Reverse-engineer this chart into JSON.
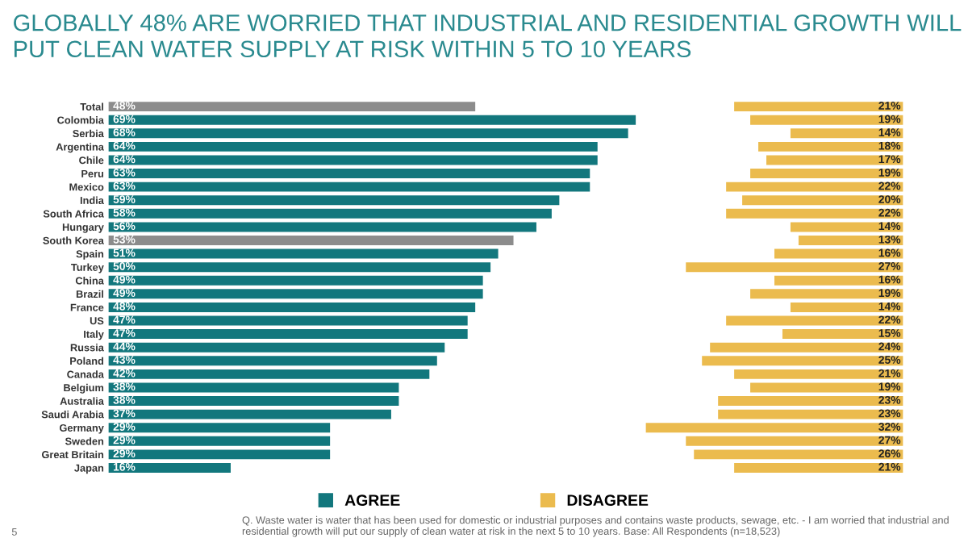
{
  "chart_data": [
    {
      "type": "bar",
      "orientation": "horizontal",
      "title": "GLOBALLY 48% ARE WORRIED THAT INDUSTRIAL AND RESIDENTIAL GROWTH WILL\nPUT CLEAN WATER SUPPLY AT RISK WITHIN 5 TO 10 YEARS",
      "categories": [
        "Total",
        "Colombia",
        "Serbia",
        "Argentina",
        "Chile",
        "Peru",
        "Mexico",
        "India",
        "South Africa",
        "Hungary",
        "South Korea",
        "Spain",
        "Turkey",
        "China",
        "Brazil",
        "France",
        "US",
        "Italy",
        "Russia",
        "Poland",
        "Canada",
        "Belgium",
        "Australia",
        "Saudi Arabia",
        "Germany",
        "Sweden",
        "Great Britain",
        "Japan"
      ],
      "series": [
        {
          "name": "AGREE",
          "color": "#12777d",
          "colors": [
            "#8c8c8c",
            "#12777d",
            "#12777d",
            "#12777d",
            "#12777d",
            "#12777d",
            "#12777d",
            "#12777d",
            "#12777d",
            "#12777d",
            "#8c8c8c",
            "#12777d",
            "#12777d",
            "#12777d",
            "#12777d",
            "#12777d",
            "#12777d",
            "#12777d",
            "#12777d",
            "#12777d",
            "#12777d",
            "#12777d",
            "#12777d",
            "#12777d",
            "#12777d",
            "#12777d",
            "#12777d",
            "#12777d"
          ],
          "values": [
            48,
            69,
            68,
            64,
            64,
            63,
            63,
            59,
            58,
            56,
            53,
            51,
            50,
            49,
            49,
            48,
            47,
            47,
            44,
            43,
            42,
            38,
            38,
            37,
            29,
            29,
            29,
            16
          ],
          "value_labels": [
            "48%",
            "69%",
            "68%",
            "64%",
            "64%",
            "63%",
            "63%",
            "59%",
            "58%",
            "56%",
            "53%",
            "51%",
            "50%",
            "49%",
            "49%",
            "48%",
            "47%",
            "47%",
            "44%",
            "43%",
            "42%",
            "38%",
            "38%",
            "37%",
            "29%",
            "29%",
            "29%",
            "16%"
          ]
        }
      ],
      "tick_labels": "y",
      "legend": "bottom",
      "annotations": [
        "5",
        "Q. Waste water is water that has been used for domestic or industrial purposes and contains waste products, sewage, etc. - I am worried that industrial and residential growth will put our supply of clean water at risk in the next 5 to 10 years. Base: All Respondents (n=18,523)"
      ]
    },
    {
      "type": "bar",
      "orientation": "horizontal",
      "categories": [
        null,
        null,
        null,
        null,
        null,
        null,
        null,
        null,
        null,
        null,
        null,
        null,
        null,
        null,
        null,
        null,
        null,
        null,
        null,
        null,
        null,
        null,
        null,
        null,
        null,
        null,
        null,
        null
      ],
      "series": [
        {
          "name": "DISAGREE",
          "color": "#ebbb4e",
          "values": [
            21,
            19,
            14,
            18,
            17,
            19,
            22,
            20,
            22,
            14,
            13,
            16,
            27,
            16,
            19,
            14,
            22,
            15,
            24,
            25,
            21,
            19,
            23,
            23,
            32,
            27,
            26,
            21
          ],
          "value_labels": [
            "21%",
            "19%",
            "14%",
            "18%",
            "17%",
            "19%",
            "22%",
            "20%",
            "22%",
            "14%",
            "13%",
            "16%",
            "27%",
            "16%",
            "19%",
            "14%",
            "22%",
            "15%",
            "24%",
            "25%",
            "21%",
            "19%",
            "23%",
            "23%",
            "32%",
            "27%",
            "26%",
            "21%"
          ]
        }
      ],
      "xlim": [
        32,
        0
      ],
      "tick_labels": false,
      "legend": "bottom"
    }
  ]
}
